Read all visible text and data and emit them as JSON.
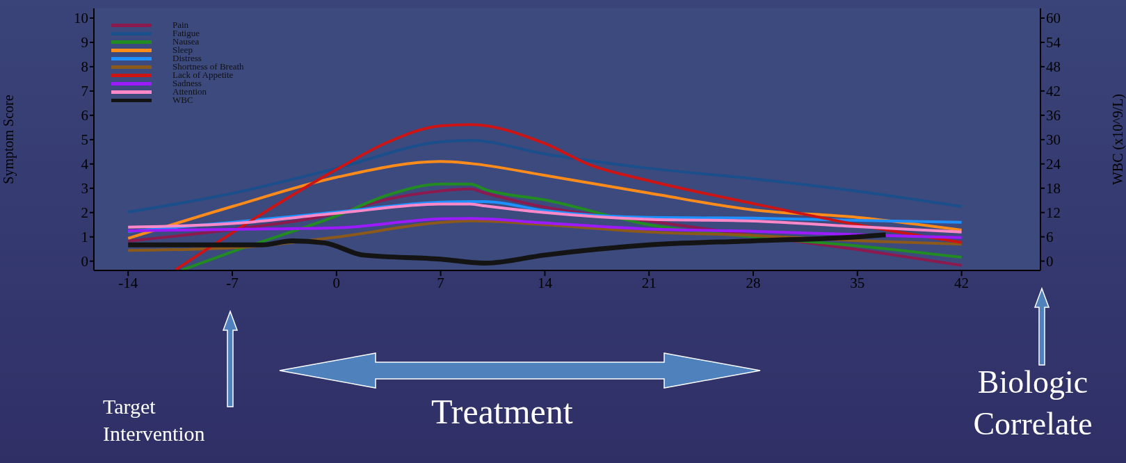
{
  "chart_data": {
    "type": "line",
    "xlabel": null,
    "ylabel": "Symptom Score",
    "y2label": "WBC (x10^9/L)",
    "xlim": [
      -16.3,
      47.3
    ],
    "xticks": [
      -14,
      -7,
      0,
      7,
      14,
      21,
      28,
      35,
      42
    ],
    "ylim": [
      -0.38,
      10.4
    ],
    "yticks": [
      0,
      1,
      2,
      3,
      4,
      5,
      6,
      7,
      8,
      9,
      10
    ],
    "y2lim": [
      -2.3,
      62.4
    ],
    "y2ticks": [
      0,
      6,
      12,
      18,
      24,
      30,
      36,
      42,
      48,
      54,
      60
    ],
    "legend": "top left",
    "marker": "none",
    "line_style": "solid",
    "series": [
      {
        "name": "Pain",
        "color": "#8b1a4f",
        "x": [
          -14,
          -7,
          0,
          3.5,
          7,
          9,
          10,
          14,
          21,
          28,
          35,
          42
        ],
        "values": [
          0.83,
          1.31,
          1.97,
          2.56,
          2.89,
          2.97,
          2.8,
          2.22,
          1.65,
          1.06,
          0.48,
          -0.17
        ]
      },
      {
        "name": "Fatigue",
        "color": "#1a4f8b",
        "x": [
          -14,
          -7,
          0,
          7,
          9,
          14,
          21,
          28,
          35,
          42
        ],
        "values": [
          2.02,
          2.79,
          3.82,
          4.91,
          4.97,
          4.41,
          3.82,
          3.39,
          2.88,
          2.25
        ]
      },
      {
        "name": "Nausea",
        "color": "#228b22",
        "x": [
          -10.4,
          -7,
          0,
          3.5,
          7,
          9,
          10,
          14,
          21,
          28,
          35,
          42
        ],
        "values": [
          -0.37,
          0.39,
          1.86,
          2.73,
          3.17,
          3.17,
          2.95,
          2.52,
          1.5,
          1.0,
          0.63,
          0.16
        ]
      },
      {
        "name": "Sleep",
        "color": "#ff8c1a",
        "x": [
          -14,
          -7,
          0,
          7,
          9,
          14,
          21,
          28,
          35,
          42
        ],
        "values": [
          0.94,
          2.25,
          3.45,
          4.1,
          4.02,
          3.53,
          2.8,
          2.11,
          1.8,
          1.28
        ]
      },
      {
        "name": "Distress",
        "color": "#1e90ff",
        "x": [
          -14,
          -7,
          0,
          7,
          9,
          10,
          14,
          21,
          28,
          35,
          42
        ],
        "values": [
          1.22,
          1.6,
          2.02,
          2.43,
          2.45,
          2.45,
          2.08,
          1.8,
          1.77,
          1.68,
          1.6
        ]
      },
      {
        "name": "Shortness of Breath",
        "color": "#8b5a1a",
        "x": [
          -14,
          -7,
          0,
          7,
          9,
          10,
          14,
          21,
          28,
          35,
          42
        ],
        "values": [
          0.44,
          0.55,
          0.99,
          1.59,
          1.66,
          1.65,
          1.5,
          1.2,
          1.06,
          0.84,
          0.7
        ]
      },
      {
        "name": "Lack of Appetite",
        "color": "#cc1414",
        "x": [
          -10.8,
          0,
          3.5,
          7,
          9,
          14,
          17,
          21,
          28,
          35,
          42
        ],
        "values": [
          -0.35,
          3.77,
          4.91,
          5.57,
          5.62,
          4.84,
          3.97,
          3.31,
          2.37,
          1.5,
          0.77
        ]
      },
      {
        "name": "Sadness",
        "color": "#9b1aff",
        "x": [
          -14,
          -7,
          0,
          7,
          9,
          10,
          14,
          21,
          28,
          35,
          42
        ],
        "values": [
          1.25,
          1.31,
          1.37,
          1.74,
          1.76,
          1.74,
          1.57,
          1.32,
          1.23,
          1.09,
          0.97
        ]
      },
      {
        "name": "Attention",
        "color": "#ff88c8",
        "x": [
          -14,
          -7,
          0,
          7,
          9,
          10,
          14,
          21,
          28,
          35,
          42
        ],
        "values": [
          1.4,
          1.55,
          1.97,
          2.35,
          2.35,
          2.27,
          2.0,
          1.72,
          1.65,
          1.42,
          1.2
        ]
      },
      {
        "name": "WBC",
        "color": "#141414",
        "axis": "y2",
        "x": [
          -14,
          -7,
          -5,
          -3,
          -0.8,
          1.8,
          7,
          10,
          14,
          21,
          28,
          35,
          36.9
        ],
        "values": [
          4,
          4,
          4,
          5,
          4.5,
          1.5,
          0.5,
          -0.5,
          1.5,
          4,
          5,
          6,
          6.5
        ]
      }
    ],
    "annotations": [
      "Target Intervention",
      "Treatment",
      "Biologic Correlate"
    ]
  }
}
